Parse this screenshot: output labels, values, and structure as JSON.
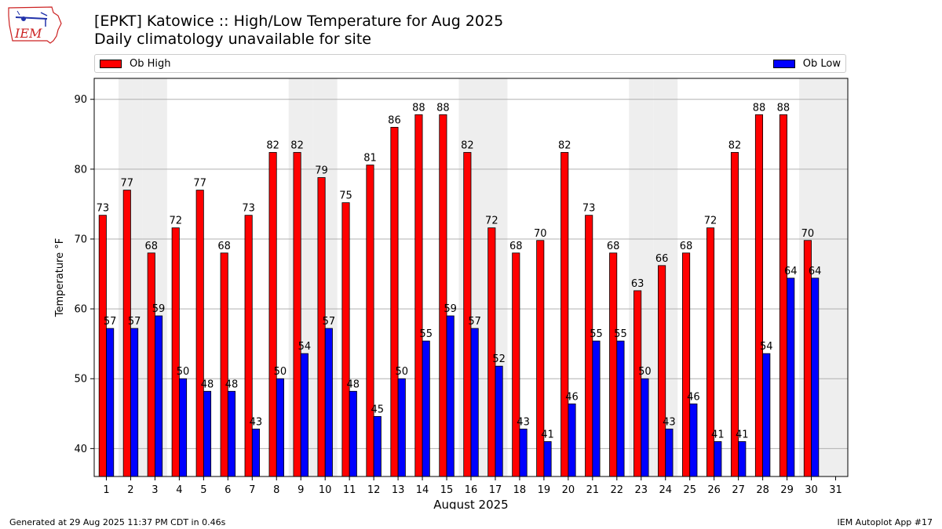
{
  "header": {
    "title_line1": "[EPKT] Katowice :: High/Low Temperature for Aug 2025",
    "title_line2": "Daily climatology unavailable for site",
    "logo_text": "IEM"
  },
  "footer": {
    "generated": "Generated at 29 Aug 2025 11:37 PM CDT in 0.46s",
    "app": "IEM Autoplot App #17"
  },
  "colors": {
    "high": "#ff0000",
    "low": "#0000ff",
    "weekend_band": "#eeeeee",
    "grid": "#b0b0b0",
    "logo": "#cc2222"
  },
  "chart_data": {
    "type": "bar",
    "xlabel": "August 2025",
    "ylabel": "Temperature °F",
    "ylim": [
      36,
      93
    ],
    "yticks": [
      40,
      50,
      60,
      70,
      80,
      90
    ],
    "grid": "horizontal",
    "legend_placement": "top, spanning plot width",
    "categories": [
      "1",
      "2",
      "3",
      "4",
      "5",
      "6",
      "7",
      "8",
      "9",
      "10",
      "11",
      "12",
      "13",
      "14",
      "15",
      "16",
      "17",
      "18",
      "19",
      "20",
      "21",
      "22",
      "23",
      "24",
      "25",
      "26",
      "27",
      "28",
      "29",
      "30",
      "31"
    ],
    "weekend_days": [
      2,
      3,
      9,
      10,
      16,
      17,
      23,
      24,
      30,
      31
    ],
    "series": [
      {
        "name": "Ob High",
        "color": "#ff0000",
        "values": [
          73.4,
          77,
          68,
          71.6,
          77,
          68,
          73.4,
          82.4,
          82.4,
          78.8,
          75.2,
          80.6,
          86,
          87.8,
          87.8,
          82.4,
          71.6,
          68,
          69.8,
          82.4,
          73.4,
          68,
          62.6,
          66.2,
          68,
          71.6,
          82.4,
          87.8,
          87.8,
          69.8,
          null
        ],
        "labels": [
          "73",
          "77",
          "68",
          "72",
          "77",
          "68",
          "73",
          "82",
          "82",
          "79",
          "75",
          "81",
          "86",
          "88",
          "88",
          "82",
          "72",
          "68",
          "70",
          "82",
          "73",
          "68",
          "63",
          "66",
          "68",
          "72",
          "82",
          "88",
          "88",
          "70",
          ""
        ]
      },
      {
        "name": "Ob Low",
        "color": "#0000ff",
        "values": [
          57.2,
          57.2,
          59,
          50,
          48.2,
          48.2,
          42.8,
          50,
          53.6,
          57.2,
          48.2,
          44.6,
          50,
          55.4,
          59,
          57.2,
          51.8,
          42.8,
          41,
          46.4,
          55.4,
          55.4,
          50,
          42.8,
          46.4,
          41,
          41,
          53.6,
          64.4,
          64.4,
          null
        ],
        "labels": [
          "57",
          "57",
          "59",
          "50",
          "48",
          "48",
          "43",
          "50",
          "54",
          "57",
          "48",
          "45",
          "50",
          "55",
          "59",
          "57",
          "52",
          "43",
          "41",
          "46",
          "55",
          "55",
          "50",
          "43",
          "46",
          "41",
          "41",
          "54",
          "64",
          "64",
          ""
        ]
      }
    ]
  }
}
